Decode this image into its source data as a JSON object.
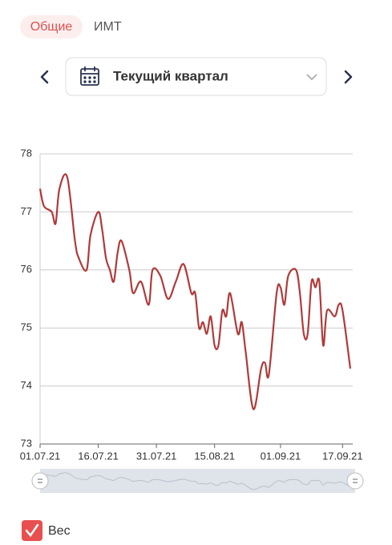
{
  "tabs": [
    "Общие",
    "ИМТ"
  ],
  "period": "Текущий квартал",
  "chart_data": {
    "type": "line",
    "x": [
      "01.07.21",
      "02.07.21",
      "04.07.21",
      "05.07.21",
      "06.07.21",
      "08.07.21",
      "10.07.21",
      "11.07.21",
      "13.07.21",
      "14.07.21",
      "16.07.21",
      "17.07.21",
      "18.07.21",
      "19.07.21",
      "20.07.21",
      "21.07.21",
      "22.07.21",
      "24.07.21",
      "25.07.21",
      "27.07.21",
      "29.07.21",
      "30.07.21",
      "01.08.21",
      "03.08.21",
      "05.08.21",
      "07.08.21",
      "09.08.21",
      "10.08.21",
      "11.08.21",
      "12.08.21",
      "13.08.21",
      "14.08.21",
      "15.08.21",
      "16.08.21",
      "17.08.21",
      "18.08.21",
      "19.08.21",
      "21.08.21",
      "22.08.21",
      "23.08.21",
      "25.08.21",
      "27.08.21",
      "28.08.21",
      "29.08.21",
      "31.08.21",
      "01.09.21",
      "02.09.21",
      "03.09.21",
      "05.09.21",
      "06.09.21",
      "07.09.21",
      "08.09.21",
      "09.09.21",
      "10.09.21",
      "11.09.21",
      "12.09.21",
      "13.09.21",
      "15.09.21",
      "16.09.21",
      "17.09.21",
      "19.09.21"
    ],
    "series": [
      {
        "name": "Вес",
        "color": "#b03a3a",
        "values": [
          77.4,
          77.1,
          77.0,
          76.8,
          77.4,
          77.6,
          76.5,
          76.2,
          76.0,
          76.6,
          77.0,
          76.7,
          76.2,
          76.0,
          75.8,
          76.3,
          76.5,
          76.0,
          75.6,
          75.8,
          75.4,
          76.0,
          75.9,
          75.5,
          75.8,
          76.1,
          75.6,
          75.6,
          75.0,
          75.1,
          74.9,
          75.2,
          74.7,
          74.7,
          75.3,
          75.2,
          75.6,
          74.9,
          75.1,
          74.6,
          73.6,
          74.3,
          74.4,
          74.2,
          75.6,
          75.7,
          75.4,
          75.9,
          76.0,
          75.6,
          74.9,
          74.9,
          75.8,
          75.7,
          75.8,
          74.7,
          75.3,
          75.2,
          75.4,
          75.3,
          74.3
        ]
      }
    ],
    "xlim": [
      "01.07.21",
      "19.09.21"
    ],
    "xticks": [
      "01.07.21",
      "16.07.21",
      "31.07.21",
      "15.08.21",
      "01.09.21",
      "17.09.21"
    ],
    "ylim": [
      73,
      78
    ],
    "yticks": [
      73,
      74,
      75,
      76,
      77,
      78
    ],
    "grid": true
  }
}
